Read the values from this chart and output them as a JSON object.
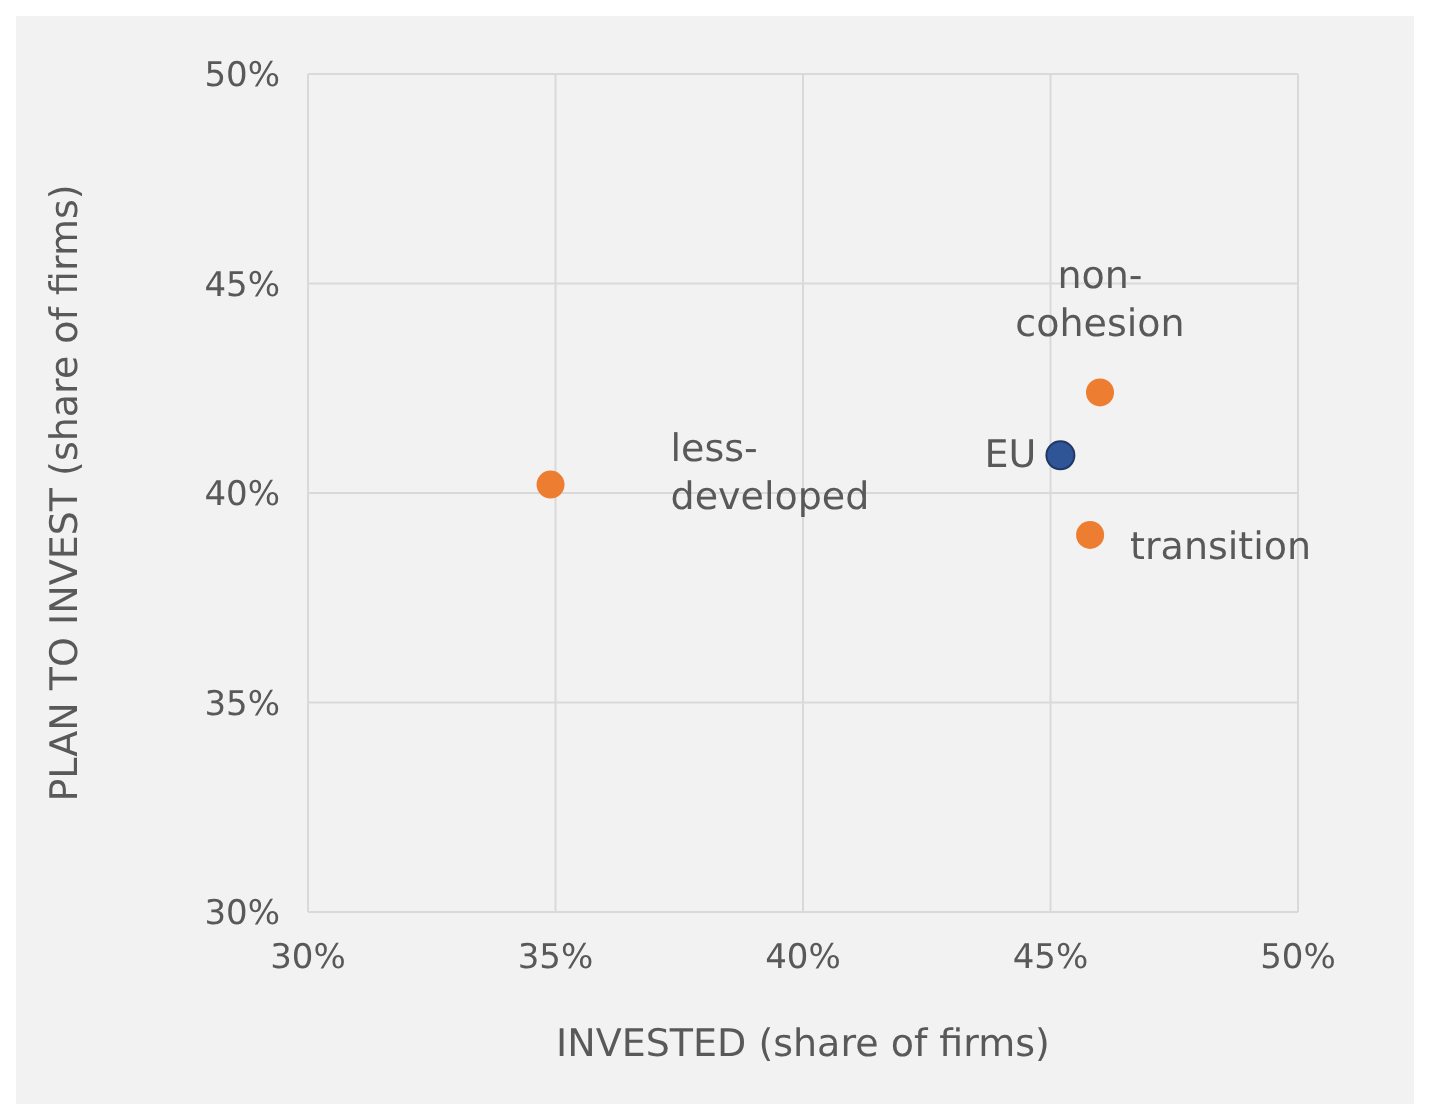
{
  "chart_data": {
    "type": "scatter",
    "xlabel": "INVESTED (share of firms)",
    "ylabel": "PLAN TO INVEST (share of firms)",
    "xlim": [
      30,
      50
    ],
    "ylim": [
      30,
      50
    ],
    "xticks": [
      {
        "value": 30,
        "label": "30%"
      },
      {
        "value": 35,
        "label": "35%"
      },
      {
        "value": 40,
        "label": "40%"
      },
      {
        "value": 45,
        "label": "45%"
      },
      {
        "value": 50,
        "label": "50%"
      }
    ],
    "yticks": [
      {
        "value": 30,
        "label": "30%"
      },
      {
        "value": 35,
        "label": "35%"
      },
      {
        "value": 40,
        "label": "40%"
      },
      {
        "value": 45,
        "label": "45%"
      },
      {
        "value": 50,
        "label": "50%"
      }
    ],
    "grid": true,
    "legend": false,
    "marker": "circle",
    "series": [
      {
        "name": "less-developed",
        "color": "#ed7d31",
        "x": [
          34.9
        ],
        "values": [
          40.2
        ]
      },
      {
        "name": "EU",
        "color": "#2f5597",
        "x": [
          45.2
        ],
        "values": [
          40.9
        ]
      },
      {
        "name": "non-cohesion",
        "color": "#ed7d31",
        "x": [
          46.0
        ],
        "values": [
          42.4
        ]
      },
      {
        "name": "transition",
        "color": "#ed7d31",
        "x": [
          45.8
        ],
        "values": [
          39.0
        ]
      }
    ]
  }
}
